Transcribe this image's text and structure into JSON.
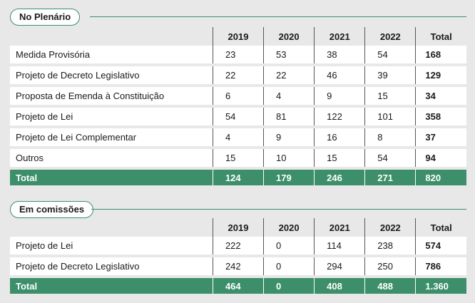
{
  "plenario": {
    "title": "No Plenário",
    "headers": [
      "2019",
      "2020",
      "2021",
      "2022",
      "Total"
    ],
    "rows": [
      {
        "label": "Medida Provisória",
        "values": [
          "23",
          "53",
          "38",
          "54"
        ],
        "total": "168"
      },
      {
        "label": "Projeto de Decreto Legislativo",
        "values": [
          "22",
          "22",
          "46",
          "39"
        ],
        "total": "129"
      },
      {
        "label": "Proposta de Emenda à Constituição",
        "values": [
          "6",
          "4",
          "9",
          "15"
        ],
        "total": "34"
      },
      {
        "label": " Projeto de Lei",
        "values": [
          "54",
          "81",
          "122",
          "101"
        ],
        "total": "358"
      },
      {
        "label": "Projeto de Lei Complementar",
        "values": [
          "4",
          "9",
          "16",
          "8"
        ],
        "total": "37"
      },
      {
        "label": " Outros",
        "values": [
          "15",
          "10",
          "15",
          "54"
        ],
        "total": "94"
      }
    ],
    "total_row": {
      "label": "Total",
      "values": [
        "124",
        "179",
        "246",
        "271"
      ],
      "total": "820"
    }
  },
  "comissoes": {
    "title": "Em comissões",
    "headers": [
      "2019",
      "2020",
      "2021",
      "2022",
      "Total"
    ],
    "rows": [
      {
        "label": "Projeto de Lei",
        "values": [
          "222",
          "0",
          "114",
          "238"
        ],
        "total": "574"
      },
      {
        "label": "Projeto de Decreto Legislativo",
        "values": [
          "242",
          "0",
          "294",
          "250"
        ],
        "total": "786"
      }
    ],
    "total_row": {
      "label": "Total",
      "values": [
        "464",
        "0",
        "408",
        "488"
      ],
      "total": "1.360"
    }
  }
}
